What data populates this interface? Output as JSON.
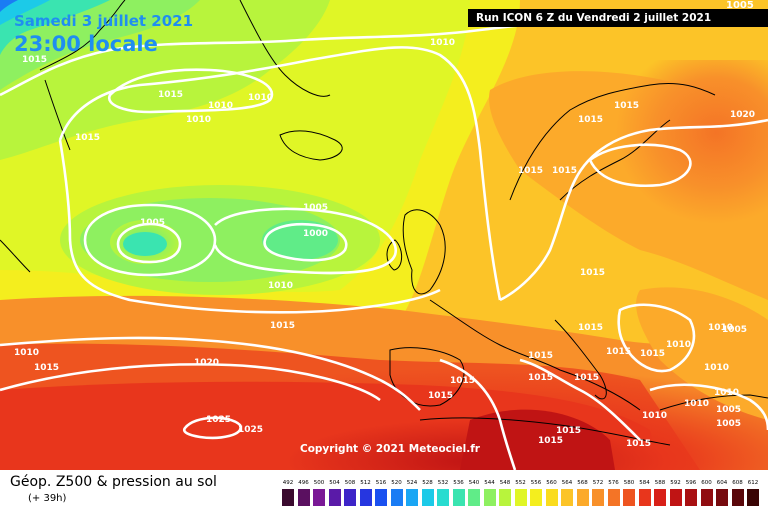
{
  "header": {
    "date": "Samedi 3 juillet 2021",
    "time": "23:00 locale",
    "run": "Run ICON 6 Z du Vendredi 2 juillet 2021",
    "corner_value": "1005"
  },
  "copyright": "Copyright © 2021 Meteociel.fr",
  "footer": {
    "title": "Géop. Z500 & pression au sol",
    "subtitle": "(+ 39h)"
  },
  "legend": {
    "values": [
      "492",
      "496",
      "500",
      "504",
      "508",
      "512",
      "516",
      "520",
      "524",
      "528",
      "532",
      "536",
      "540",
      "544",
      "548",
      "552",
      "556",
      "560",
      "564",
      "568",
      "572",
      "576",
      "580",
      "584",
      "588",
      "592",
      "596",
      "600",
      "604",
      "608",
      "612"
    ],
    "colors": [
      "#3a0a2e",
      "#5a1060",
      "#7a1896",
      "#5a1aa8",
      "#3d24c8",
      "#2636e0",
      "#1a50f0",
      "#1a7cf4",
      "#1aa6f4",
      "#1ccae8",
      "#28dcd0",
      "#3ae4b0",
      "#60ec88",
      "#8ef060",
      "#b8f43c",
      "#e0f626",
      "#f4ee1e",
      "#fadc1e",
      "#fcc428",
      "#fcaa2a",
      "#f8902a",
      "#f47426",
      "#ee5420",
      "#e8361c",
      "#d82018",
      "#c01414",
      "#a81012",
      "#900c10",
      "#760a0e",
      "#5a070a",
      "#3a0404"
    ]
  },
  "isobar_labels": [
    "1015",
    "1015",
    "1010",
    "1010",
    "1015",
    "1010",
    "1010",
    "1015",
    "1005",
    "1005",
    "1000",
    "1010",
    "1015",
    "1010",
    "1015",
    "1020",
    "1025",
    "1025",
    "1015",
    "1015",
    "1015",
    "1015",
    "1015",
    "1015",
    "1015",
    "1015",
    "1015",
    "1015",
    "1015",
    "1015",
    "1015",
    "1015",
    "1015",
    "1010",
    "1010",
    "1010",
    "1010",
    "1005",
    "1005",
    "1010",
    "1005",
    "1020",
    "1010"
  ]
}
